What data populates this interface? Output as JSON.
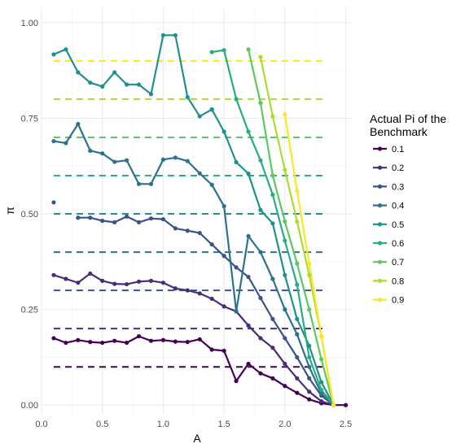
{
  "chart_data": {
    "type": "line",
    "xlabel": "A",
    "ylabel": "π",
    "xlim": [
      0,
      2.55
    ],
    "ylim": [
      -0.025,
      1.04
    ],
    "x_ticks": [
      "0.0",
      "0.5",
      "1.0",
      "1.5",
      "2.0",
      "2.5"
    ],
    "x_tick_values": [
      0,
      0.5,
      1.0,
      1.5,
      2.0,
      2.5
    ],
    "y_ticks": [
      "0.00",
      "0.25",
      "0.50",
      "0.75",
      "1.00"
    ],
    "y_tick_values": [
      0,
      0.25,
      0.5,
      0.75,
      1.0
    ],
    "grid": true,
    "legend": {
      "title_lines": [
        "Actual Pi of the",
        "Benchmark"
      ],
      "position": "right"
    },
    "reference_lines": [
      {
        "y": 0.1,
        "x_range": [
          0.1,
          2.35
        ]
      },
      {
        "y": 0.2,
        "x_range": [
          0.1,
          2.35
        ]
      },
      {
        "y": 0.3,
        "x_range": [
          0.1,
          2.35
        ]
      },
      {
        "y": 0.4,
        "x_range": [
          0.1,
          2.35
        ]
      },
      {
        "y": 0.5,
        "x_range": [
          0.1,
          2.35
        ]
      },
      {
        "y": 0.6,
        "x_range": [
          0.1,
          2.35
        ]
      },
      {
        "y": 0.7,
        "x_range": [
          0.1,
          2.35
        ]
      },
      {
        "y": 0.8,
        "x_range": [
          0.1,
          2.35
        ]
      },
      {
        "y": 0.9,
        "x_range": [
          0.1,
          2.35
        ]
      }
    ],
    "series": [
      {
        "name": "0.1",
        "color": "#440154",
        "x": [
          0.1,
          0.2,
          0.3,
          0.4,
          0.5,
          0.6,
          0.7,
          0.8,
          0.9,
          1.0,
          1.1,
          1.2,
          1.3,
          1.4,
          1.5,
          1.6,
          1.7,
          1.8,
          1.9,
          2.0,
          2.1,
          2.2,
          2.3,
          2.4,
          2.5
        ],
        "y": [
          0.175,
          0.163,
          0.17,
          0.165,
          0.163,
          0.168,
          0.163,
          0.18,
          0.168,
          0.17,
          0.166,
          0.165,
          0.172,
          0.145,
          0.142,
          0.063,
          0.108,
          0.083,
          0.07,
          0.05,
          0.032,
          0.015,
          0.005,
          0.0,
          0.0
        ]
      },
      {
        "name": "0.2",
        "color": "#472D7B",
        "x": [
          0.1,
          0.2,
          0.3,
          0.4,
          0.5,
          0.6,
          0.7,
          0.8,
          0.9,
          1.0,
          1.1,
          1.2,
          1.3,
          1.4,
          1.5,
          1.6,
          1.7,
          1.8,
          1.9,
          2.0,
          2.1,
          2.2,
          2.3,
          2.4
        ],
        "y": [
          0.34,
          0.33,
          0.32,
          0.344,
          0.325,
          0.317,
          0.316,
          0.323,
          0.325,
          0.32,
          0.305,
          0.3,
          0.292,
          0.278,
          0.258,
          0.245,
          0.208,
          0.175,
          0.15,
          0.108,
          0.07,
          0.035,
          0.01,
          0.0
        ]
      },
      {
        "name": "0.3",
        "color": "#3B528B",
        "x": [
          0.1
        ],
        "y": [
          0.53
        ]
      },
      {
        "name": "0.3",
        "color": "#3B528B",
        "x": [
          0.3,
          0.4,
          0.5,
          0.6,
          0.7,
          0.8,
          0.9,
          1.0,
          1.1,
          1.2,
          1.3,
          1.4,
          1.5,
          1.6,
          1.7,
          1.8,
          1.9,
          2.0,
          2.1,
          2.2,
          2.3,
          2.4
        ],
        "y": [
          0.49,
          0.49,
          0.482,
          0.478,
          0.493,
          0.478,
          0.488,
          0.486,
          0.462,
          0.456,
          0.45,
          0.42,
          0.39,
          0.36,
          0.335,
          0.28,
          0.225,
          0.175,
          0.125,
          0.07,
          0.025,
          0.0
        ]
      },
      {
        "name": "0.4",
        "color": "#2C728E",
        "x": [
          0.1,
          0.2,
          0.3,
          0.4,
          0.5,
          0.6,
          0.7,
          0.8,
          0.9,
          1.0,
          1.1,
          1.2,
          1.3,
          1.4,
          1.5,
          1.6,
          1.7,
          1.8,
          1.9,
          2.0,
          2.1,
          2.2,
          2.3,
          2.4
        ],
        "y": [
          0.69,
          0.685,
          0.735,
          0.665,
          0.658,
          0.636,
          0.64,
          0.578,
          0.578,
          0.642,
          0.647,
          0.638,
          0.606,
          0.576,
          0.52,
          0.245,
          0.442,
          0.4,
          0.33,
          0.25,
          0.185,
          0.1,
          0.03,
          0.0
        ]
      },
      {
        "name": "0.5",
        "color": "#21908C",
        "x": [
          0.1,
          0.2,
          0.3,
          0.4,
          0.5,
          0.6,
          0.7,
          0.8,
          0.9,
          1.0,
          1.1,
          1.2,
          1.3,
          1.4
        ],
        "y": [
          0.917,
          0.93,
          0.87,
          0.843,
          0.833,
          0.87,
          0.838,
          0.838,
          0.813,
          0.967,
          0.967,
          0.805,
          0.755,
          0.773
        ]
      },
      {
        "name": "0.5",
        "color": "#21908C",
        "x": [
          1.4,
          1.5,
          1.6,
          1.7,
          1.8,
          1.9,
          2.0,
          2.1,
          2.2,
          2.3,
          2.4
        ],
        "y": [
          0.773,
          0.715,
          0.635,
          0.605,
          0.51,
          0.475,
          0.34,
          0.225,
          0.155,
          0.06,
          0.0
        ]
      },
      {
        "name": "0.6",
        "color": "#27AD81",
        "x": [
          1.4,
          1.5,
          1.6,
          1.7,
          1.8,
          1.9,
          2.0,
          2.1,
          2.2,
          2.3,
          2.4
        ],
        "y": [
          0.923,
          0.928,
          0.8,
          0.715,
          0.64,
          0.55,
          0.43,
          0.315,
          0.125,
          0.04,
          0.0
        ]
      },
      {
        "name": "0.7",
        "color": "#5DC863",
        "x": [
          1.7,
          1.8,
          1.9,
          2.0,
          2.1,
          2.2,
          2.3,
          2.4
        ],
        "y": [
          0.93,
          0.79,
          0.6,
          0.48,
          0.37,
          0.25,
          0.12,
          0.0
        ]
      },
      {
        "name": "0.8",
        "color": "#AADC32",
        "x": [
          1.8,
          1.9,
          2.0,
          2.1,
          2.2,
          2.3,
          2.4
        ],
        "y": [
          0.91,
          0.755,
          0.615,
          0.48,
          0.34,
          0.18,
          0.0
        ]
      },
      {
        "name": "0.9",
        "color": "#FDE725",
        "x": [
          2.0,
          2.1,
          2.2,
          2.3,
          2.4
        ],
        "y": [
          0.76,
          0.56,
          0.37,
          0.18,
          0.0
        ]
      }
    ],
    "legend_entries": [
      {
        "label": "0.1",
        "color": "#440154"
      },
      {
        "label": "0.2",
        "color": "#472D7B"
      },
      {
        "label": "0.3",
        "color": "#3B528B"
      },
      {
        "label": "0.4",
        "color": "#2C728E"
      },
      {
        "label": "0.5",
        "color": "#21908C"
      },
      {
        "label": "0.6",
        "color": "#27AD81"
      },
      {
        "label": "0.7",
        "color": "#5DC863"
      },
      {
        "label": "0.8",
        "color": "#AADC32"
      },
      {
        "label": "0.9",
        "color": "#FDE725"
      }
    ]
  }
}
